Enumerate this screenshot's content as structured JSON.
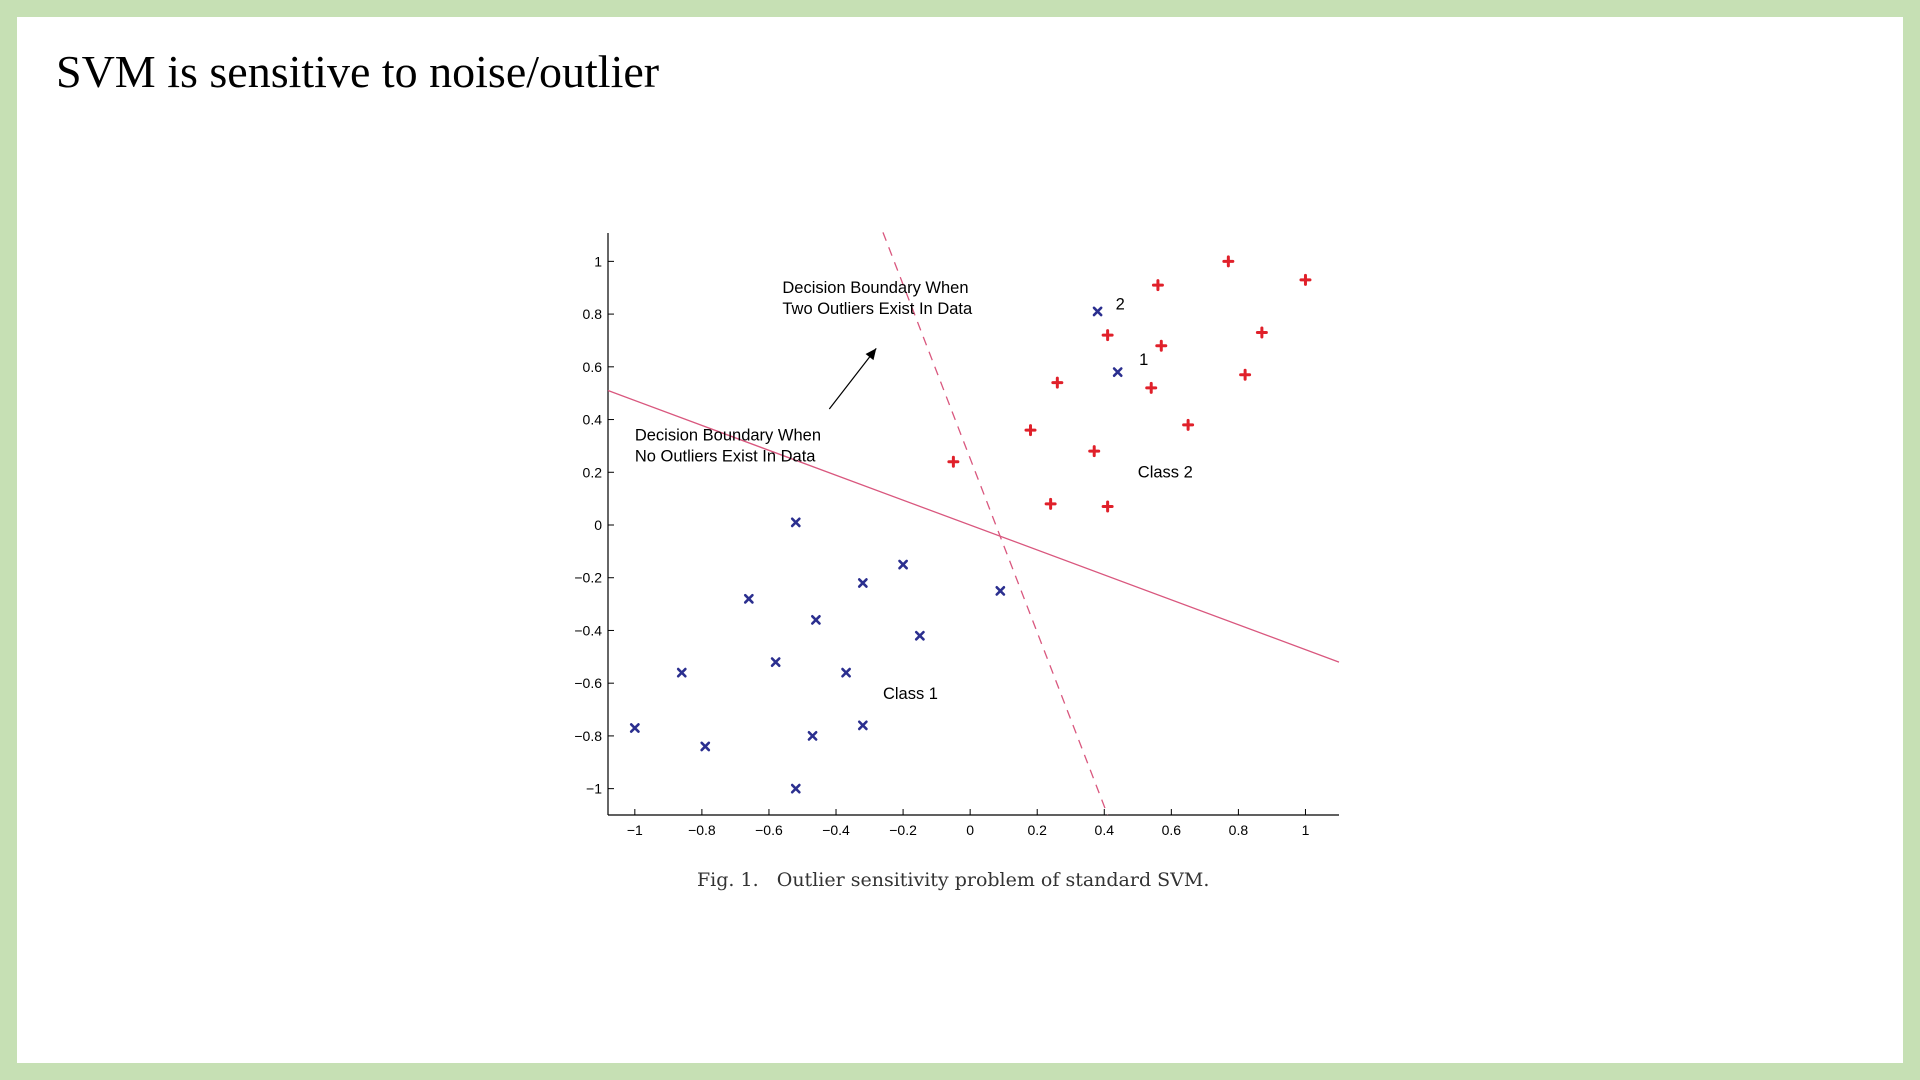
{
  "slide": {
    "title": "SVM is sensitive to noise/outlier",
    "caption": "Fig. 1.   Outlier sensitivity problem of standard SVM."
  },
  "colors": {
    "background_border": "#c6e0b4",
    "class1": "#2b2f8f",
    "class2": "#e0202a",
    "boundary": "#d9577e"
  },
  "chart_data": {
    "type": "scatter",
    "title": "",
    "xlabel": "",
    "ylabel": "",
    "xlim": [
      -1.08,
      1.1
    ],
    "ylim": [
      -1.1,
      1.1
    ],
    "xticks": [
      -1,
      -0.8,
      -0.6,
      -0.4,
      -0.2,
      0,
      0.2,
      0.4,
      0.6,
      0.8,
      1
    ],
    "xtick_labels": [
      "−1",
      "−0.8",
      "−0.6",
      "−0.4",
      "−0.2",
      "0",
      "0.2",
      "0.4",
      "0.6",
      "0.8",
      "1"
    ],
    "yticks": [
      1,
      0.8,
      0.6,
      0.4,
      0.2,
      0,
      -0.2,
      -0.4,
      -0.6,
      -0.8,
      -1
    ],
    "ytick_labels": [
      "1",
      "0.8",
      "0.6",
      "0.4",
      "0.2",
      "0",
      "−0.2",
      "−0.4",
      "−0.6",
      "−0.8",
      "−1"
    ],
    "grid": false,
    "series": [
      {
        "marker": "x",
        "color": "#2b2f8f",
        "points": [
          [
            -0.52,
            0.01
          ],
          [
            -0.2,
            -0.15
          ],
          [
            -0.32,
            -0.22
          ],
          [
            -0.66,
            -0.28
          ],
          [
            -0.46,
            -0.36
          ],
          [
            -0.15,
            -0.42
          ],
          [
            -0.58,
            -0.52
          ],
          [
            -0.37,
            -0.56
          ],
          [
            -0.86,
            -0.56
          ],
          [
            -1.0,
            -0.77
          ],
          [
            -0.79,
            -0.84
          ],
          [
            -0.47,
            -0.8
          ],
          [
            -0.32,
            -0.76
          ],
          [
            -0.52,
            -1.0
          ],
          [
            0.09,
            -0.25
          ],
          [
            0.38,
            0.81
          ],
          [
            0.44,
            0.58
          ]
        ]
      },
      {
        "marker": "+",
        "color": "#e0202a",
        "points": [
          [
            0.77,
            1.0
          ],
          [
            1.0,
            0.93
          ],
          [
            0.56,
            0.91
          ],
          [
            0.41,
            0.72
          ],
          [
            0.57,
            0.68
          ],
          [
            0.87,
            0.73
          ],
          [
            0.82,
            0.57
          ],
          [
            0.26,
            0.54
          ],
          [
            0.54,
            0.52
          ],
          [
            0.18,
            0.36
          ],
          [
            0.65,
            0.38
          ],
          [
            0.37,
            0.28
          ],
          [
            -0.05,
            0.24
          ],
          [
            0.24,
            0.08
          ],
          [
            0.41,
            0.07
          ]
        ]
      }
    ],
    "lines": [
      {
        "style": "solid",
        "from": [
          -1.08,
          0.51
        ],
        "to": [
          1.1,
          -0.52
        ]
      },
      {
        "style": "dashed",
        "from": [
          -0.26,
          1.11
        ],
        "to": [
          0.41,
          -1.1
        ]
      }
    ],
    "arrow": {
      "from": [
        -0.42,
        0.44
      ],
      "to": [
        -0.28,
        0.67
      ]
    },
    "annotations": [
      {
        "lines": [
          "Decision Boundary When",
          "Two Outliers Exist In Data"
        ],
        "at": [
          -0.56,
          0.88
        ]
      },
      {
        "lines": [
          "Decision Boundary When",
          "No Outliers Exist In Data"
        ],
        "at": [
          -1.0,
          0.32
        ]
      },
      {
        "lines": [
          "Class 2"
        ],
        "at": [
          0.5,
          0.18
        ]
      },
      {
        "lines": [
          "Class 1"
        ],
        "at": [
          -0.26,
          -0.66
        ]
      },
      {
        "lines": [
          "2"
        ],
        "at": [
          0.41,
          0.81
        ]
      },
      {
        "lines": [
          "1"
        ],
        "at": [
          0.48,
          0.6
        ]
      }
    ]
  }
}
